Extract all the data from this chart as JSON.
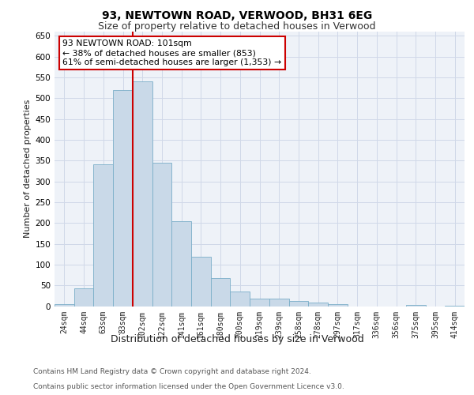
{
  "title1": "93, NEWTOWN ROAD, VERWOOD, BH31 6EG",
  "title2": "Size of property relative to detached houses in Verwood",
  "xlabel": "Distribution of detached houses by size in Verwood",
  "ylabel": "Number of detached properties",
  "footer1": "Contains HM Land Registry data © Crown copyright and database right 2024.",
  "footer2": "Contains public sector information licensed under the Open Government Licence v3.0.",
  "bin_labels": [
    "24sqm",
    "44sqm",
    "63sqm",
    "83sqm",
    "102sqm",
    "122sqm",
    "141sqm",
    "161sqm",
    "180sqm",
    "200sqm",
    "219sqm",
    "239sqm",
    "258sqm",
    "278sqm",
    "297sqm",
    "317sqm",
    "336sqm",
    "356sqm",
    "375sqm",
    "395sqm",
    "414sqm"
  ],
  "bar_values": [
    5,
    42,
    340,
    520,
    540,
    345,
    204,
    118,
    68,
    35,
    18,
    18,
    12,
    9,
    4,
    0,
    0,
    0,
    2,
    0,
    1
  ],
  "bar_color": "#c9d9e8",
  "bar_edge_color": "#7aaec8",
  "grid_color": "#d0d8e8",
  "annotation_text": "93 NEWTOWN ROAD: 101sqm\n← 38% of detached houses are smaller (853)\n61% of semi-detached houses are larger (1,353) →",
  "annotation_box_color": "#ffffff",
  "annotation_box_edge": "#cc0000",
  "vline_color": "#cc0000",
  "vline_x_index": 4,
  "ylim": [
    0,
    660
  ],
  "yticks": [
    0,
    50,
    100,
    150,
    200,
    250,
    300,
    350,
    400,
    450,
    500,
    550,
    600,
    650
  ],
  "background_color": "#eef2f8",
  "title1_fontsize": 10,
  "title2_fontsize": 9,
  "ylabel_fontsize": 8,
  "xlabel_fontsize": 9,
  "tick_fontsize": 7,
  "footer_fontsize": 6.5
}
